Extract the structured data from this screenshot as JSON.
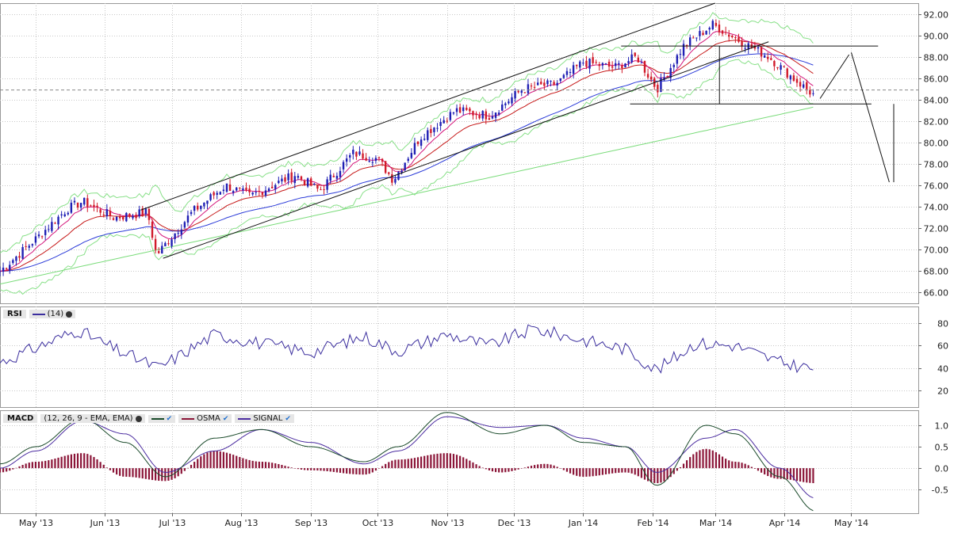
{
  "price_panel": {
    "y_ticks": [
      "92.00",
      "90.00",
      "88.00",
      "86.00",
      "84.00",
      "82.00",
      "80.00",
      "78.00",
      "76.00",
      "74.00",
      "72.00",
      "70.00",
      "68.00",
      "66.00"
    ],
    "y_range": [
      65,
      93
    ],
    "reference_level": 84.9
  },
  "rsi_panel": {
    "legend": {
      "title": "RSI",
      "period": "(14)"
    },
    "y_ticks": [
      "80",
      "60",
      "40",
      "20"
    ],
    "y_range": [
      5,
      95
    ],
    "line_color": "#3b2e9e"
  },
  "macd_panel": {
    "legend": {
      "title": "MACD",
      "params": "(12, 26, 9 - EMA, EMA)",
      "osma_label": "OSMA",
      "signal_label": "SIGNAL"
    },
    "y_ticks": [
      "1.0",
      "0.5",
      "0.0",
      "-0.5"
    ],
    "y_range": [
      -1.05,
      1.35
    ],
    "colors": {
      "macd": "#1a4a2a",
      "osma": "#8b1538",
      "signal": "#4b2ca0"
    }
  },
  "x_axis": {
    "labels": [
      "May '13",
      "Jun '13",
      "Jul '13",
      "Aug '13",
      "Sep '13",
      "Oct '13",
      "Nov '13",
      "Dec '13",
      "Jan '14",
      "Feb '14",
      "Mar '14",
      "Apr '14",
      "May '14"
    ]
  },
  "colors": {
    "up_candle": "#1f1fb4",
    "down_candle": "#d11a2a",
    "ema_fast": "#d4147a",
    "ema_mid": "#c61818",
    "ema_slow": "#2a3ad8",
    "bollinger": "#88e088",
    "ma_long": "#7bdc7b",
    "trendlines": "#111111",
    "grid": "#c8c8c8"
  },
  "chart_data": [
    {
      "type": "candlestick",
      "title": "",
      "x": [
        "2013-04-15",
        "2013-05-01",
        "2013-05-15",
        "2013-05-22",
        "2013-06-05",
        "2013-06-20",
        "2013-06-24",
        "2013-07-10",
        "2013-07-25",
        "2013-08-05",
        "2013-08-25",
        "2013-09-05",
        "2013-09-20",
        "2013-10-01",
        "2013-10-08",
        "2013-10-20",
        "2013-11-05",
        "2013-11-20",
        "2013-12-05",
        "2013-12-20",
        "2014-01-01",
        "2014-01-15",
        "2014-01-25",
        "2014-02-03",
        "2014-02-15",
        "2014-02-28",
        "2014-03-12",
        "2014-03-25",
        "2014-04-05",
        "2014-04-15"
      ],
      "close": [
        68.0,
        71.0,
        73.8,
        74.5,
        73.0,
        73.5,
        69.5,
        73.5,
        76.0,
        75.0,
        77.0,
        75.5,
        79.0,
        78.5,
        76.5,
        80.5,
        83.0,
        82.5,
        85.0,
        85.5,
        87.5,
        87.0,
        88.0,
        85.0,
        89.0,
        91.0,
        89.5,
        88.0,
        86.0,
        84.3
      ],
      "ma_long_start": 66.8,
      "ma_long_end": 83.3,
      "ylim": [
        65,
        93
      ]
    },
    {
      "type": "line",
      "title": "RSI (14)",
      "x": [
        "2013-04-15",
        "2013-05-01",
        "2013-05-20",
        "2013-06-05",
        "2013-06-25",
        "2013-07-20",
        "2013-08-10",
        "2013-09-01",
        "2013-09-25",
        "2013-10-10",
        "2013-11-01",
        "2013-11-20",
        "2013-12-10",
        "2014-01-01",
        "2014-01-20",
        "2014-02-03",
        "2014-02-20",
        "2014-03-10",
        "2014-03-30",
        "2014-04-15"
      ],
      "values": [
        45,
        58,
        74,
        57,
        40,
        70,
        62,
        54,
        68,
        55,
        70,
        60,
        75,
        65,
        57,
        38,
        62,
        60,
        45,
        39
      ],
      "ylim": [
        5,
        95
      ]
    },
    {
      "type": "line",
      "title": "MACD (12, 26, 9 - EMA, EMA)",
      "x": [
        "2013-04-15",
        "2013-05-01",
        "2013-05-22",
        "2013-06-10",
        "2013-06-28",
        "2013-07-20",
        "2013-08-10",
        "2013-09-01",
        "2013-09-25",
        "2013-10-10",
        "2013-11-01",
        "2013-11-25",
        "2013-12-15",
        "2014-01-01",
        "2014-01-20",
        "2014-02-03",
        "2014-02-25",
        "2014-03-10",
        "2014-03-30",
        "2014-04-15"
      ],
      "series": [
        {
          "name": "MACD",
          "values": [
            0.1,
            0.5,
            1.15,
            0.6,
            -0.2,
            0.7,
            0.9,
            0.5,
            0.15,
            0.5,
            1.3,
            0.8,
            1.0,
            0.6,
            0.5,
            -0.4,
            1.0,
            0.8,
            -0.2,
            -1.0
          ]
        },
        {
          "name": "SIGNAL",
          "values": [
            0.0,
            0.4,
            1.1,
            0.8,
            -0.1,
            0.4,
            0.9,
            0.6,
            0.1,
            0.4,
            1.2,
            0.95,
            1.0,
            0.7,
            0.5,
            -0.1,
            0.7,
            0.9,
            0.0,
            -0.7
          ]
        },
        {
          "name": "OSMA",
          "values": [
            -0.1,
            0.15,
            0.35,
            -0.2,
            -0.3,
            0.4,
            0.15,
            -0.05,
            -0.15,
            0.2,
            0.35,
            -0.1,
            0.1,
            -0.2,
            -0.1,
            -0.35,
            0.45,
            0.15,
            -0.25,
            -0.35
          ]
        }
      ],
      "ylim": [
        -1.05,
        1.35
      ]
    }
  ]
}
